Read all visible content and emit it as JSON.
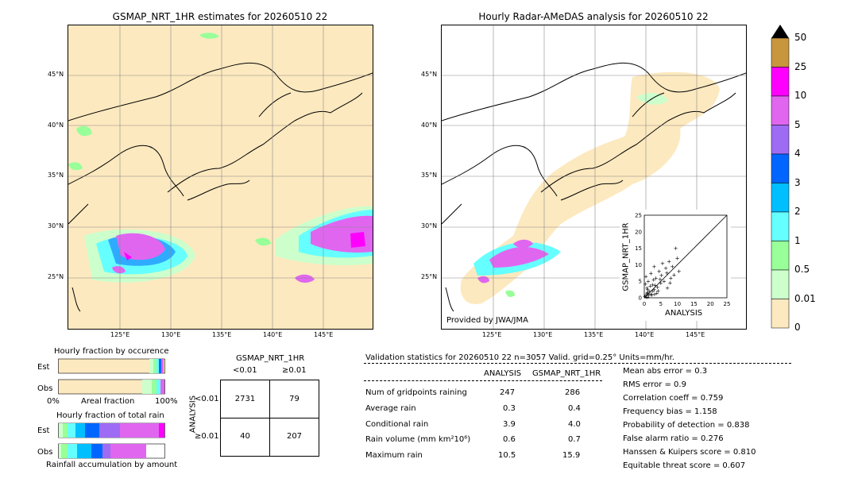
{
  "left_map": {
    "title": "GSMAP_NRT_1HR estimates for 20260510 22",
    "lat_ticks": [
      "45°N",
      "40°N",
      "35°N",
      "30°N",
      "25°N"
    ],
    "lon_ticks": [
      "125°E",
      "130°E",
      "135°E",
      "140°E",
      "145°E"
    ]
  },
  "right_map": {
    "title": "Hourly Radar-AMeDAS analysis for 20260510 22",
    "lat_ticks": [
      "45°N",
      "40°N",
      "35°N",
      "30°N",
      "25°N"
    ],
    "lon_ticks": [
      "125°E",
      "130°E",
      "135°E",
      "140°E",
      "145°E"
    ],
    "credit": "Provided by JWA/JMA"
  },
  "colorbar": {
    "labels": [
      "50",
      "25",
      "10",
      "5",
      "4",
      "3",
      "2",
      "1",
      "0.5",
      "0.01",
      "0"
    ],
    "colors": [
      "#c8963c",
      "#ff00ff",
      "#e066f0",
      "#9e6bf5",
      "#0066ff",
      "#00bfff",
      "#66ffff",
      "#99ff99",
      "#ccffcc",
      "#fde9bf"
    ]
  },
  "chart_data": [
    {
      "type": "scatter",
      "xlabel": "ANALYSIS",
      "ylabel": "GSMAP_NRT_1HR",
      "xlim": [
        0,
        25
      ],
      "ylim": [
        0,
        25
      ],
      "x_ticks": [
        "0",
        "5",
        "10",
        "15",
        "20",
        "25"
      ],
      "y_ticks": [
        "0",
        "5",
        "10",
        "15",
        "20",
        "25"
      ],
      "points": [
        [
          0.2,
          0.5
        ],
        [
          0.5,
          1.0
        ],
        [
          1.0,
          0.3
        ],
        [
          1.5,
          2.0
        ],
        [
          2.0,
          1.2
        ],
        [
          0.8,
          3.0
        ],
        [
          3.0,
          2.5
        ],
        [
          2.5,
          4.0
        ],
        [
          4.0,
          3.2
        ],
        [
          1.2,
          5.0
        ],
        [
          5.0,
          4.5
        ],
        [
          3.5,
          6.0
        ],
        [
          6.0,
          5.0
        ],
        [
          0.5,
          6.5
        ],
        [
          7.0,
          3.0
        ],
        [
          2.0,
          7.5
        ],
        [
          8.0,
          6.0
        ],
        [
          4.5,
          8.0
        ],
        [
          6.5,
          9.0
        ],
        [
          9.0,
          7.0
        ],
        [
          3.0,
          9.5
        ],
        [
          10.5,
          8.0
        ],
        [
          5.5,
          10.5
        ],
        [
          7.5,
          11.0
        ],
        [
          9.5,
          15.0
        ],
        [
          1.0,
          2.5
        ],
        [
          2.2,
          0.8
        ],
        [
          3.8,
          1.5
        ],
        [
          0.3,
          4.2
        ],
        [
          1.8,
          3.6
        ],
        [
          4.2,
          2.2
        ],
        [
          5.2,
          6.8
        ],
        [
          6.8,
          7.6
        ],
        [
          2.8,
          5.5
        ],
        [
          0.9,
          1.6
        ],
        [
          1.4,
          0.9
        ],
        [
          3.3,
          3.9
        ],
        [
          4.8,
          5.6
        ],
        [
          7.8,
          4.6
        ],
        [
          8.5,
          9.5
        ],
        [
          10.0,
          12.0
        ],
        [
          0.6,
          0.2
        ],
        [
          1.1,
          1.3
        ],
        [
          2.6,
          2.1
        ],
        [
          3.1,
          1.1
        ]
      ]
    },
    {
      "type": "bar",
      "title": "Hourly fraction by occurence",
      "categories": [
        "Est",
        "Obs"
      ],
      "xlabel": "Areal fraction",
      "x_ticks": [
        "0%",
        "100%"
      ]
    },
    {
      "type": "bar",
      "title": "Hourly fraction of total rain",
      "categories": [
        "Est",
        "Obs"
      ],
      "xlabel": "Rainfall accumulation by amount"
    }
  ],
  "contingency": {
    "header": "GSMAP_NRT_1HR",
    "col_labels": [
      "<0.01",
      "≥0.01"
    ],
    "row_axis": "ANALYSIS",
    "row_labels": [
      "<0.01",
      "≥0.01"
    ],
    "cells": [
      [
        "2731",
        "79"
      ],
      [
        "40",
        "207"
      ]
    ]
  },
  "validation": {
    "header": "Validation statistics for 20260510 22  n=3057 Valid. grid=0.25° Units=mm/hr.",
    "col_analysis": "ANALYSIS",
    "col_gsmap": "GSMAP_NRT_1HR",
    "rows": [
      {
        "label": "Num of gridpoints raining",
        "analysis": "247",
        "gsmap": "286"
      },
      {
        "label": "Average rain",
        "analysis": "0.3",
        "gsmap": "0.4"
      },
      {
        "label": "Conditional rain",
        "analysis": "3.9",
        "gsmap": "4.0"
      },
      {
        "label": "Rain volume (mm km²10⁶)",
        "analysis": "0.6",
        "gsmap": "0.7"
      },
      {
        "label": "Maximum rain",
        "analysis": "10.5",
        "gsmap": "15.9"
      }
    ],
    "scores": [
      "Mean abs error =    0.3",
      "RMS error =    0.9",
      "Correlation coeff =  0.759",
      "Frequency bias =  1.158",
      "Probability of detection =  0.838",
      "False alarm ratio =  0.276",
      "Hanssen & Kuipers score =  0.810",
      "Equitable threat score =  0.607"
    ]
  }
}
